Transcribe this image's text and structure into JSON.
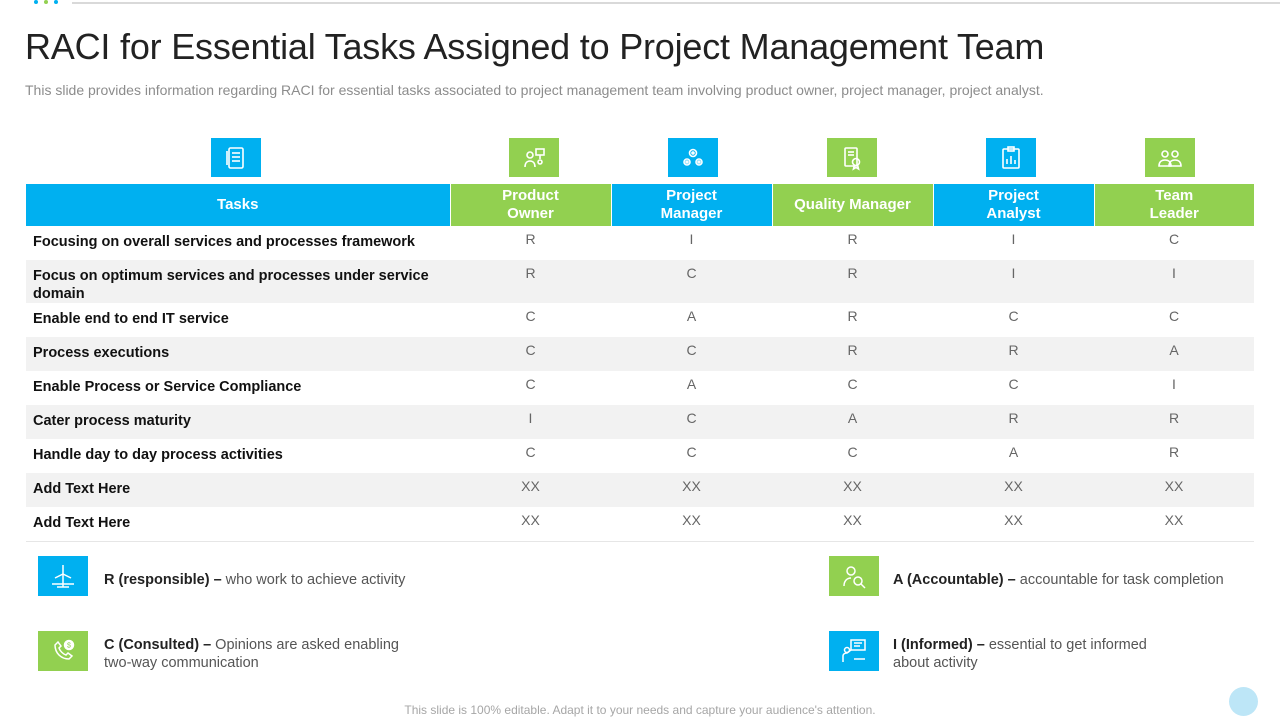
{
  "title": "RACI for Essential Tasks Assigned to Project Management Team",
  "subtitle": "This slide provides information regarding RACI for essential tasks associated to project management team involving product owner, project manager, project analyst.",
  "colors": {
    "blue": "#00b0f0",
    "green": "#92d050"
  },
  "table": {
    "headers": [
      "Tasks",
      "Product Owner",
      "Project Manager",
      "Quality Manager",
      "Project Analyst",
      "Team Leader"
    ],
    "role_icons": [
      "document-list-icon",
      "team-presentation-icon",
      "gears-icon",
      "certificate-icon",
      "clipboard-chart-icon",
      "group-icon"
    ],
    "rows": [
      {
        "task": "Focusing on overall services and processes framework",
        "values": [
          "R",
          "I",
          "R",
          "I",
          "C"
        ]
      },
      {
        "task": "Focus on optimum  services and processes under service domain",
        "values": [
          "R",
          "C",
          "R",
          "I",
          "I"
        ]
      },
      {
        "task": "Enable end to end IT service",
        "values": [
          "C",
          "A",
          "R",
          "C",
          "C"
        ]
      },
      {
        "task": "Process executions",
        "values": [
          "C",
          "C",
          "R",
          "R",
          "A"
        ]
      },
      {
        "task": "Enable Process or Service Compliance",
        "values": [
          "C",
          "A",
          "C",
          "C",
          "I"
        ]
      },
      {
        "task": "Cater process maturity",
        "values": [
          "I",
          "C",
          "A",
          "R",
          "R"
        ]
      },
      {
        "task": "Handle day to day process activities",
        "values": [
          "C",
          "C",
          "C",
          "A",
          "R"
        ]
      },
      {
        "task": "Add  Text Here",
        "values": [
          "XX",
          "XX",
          "XX",
          "XX",
          "XX"
        ]
      },
      {
        "task": "Add  Text Here",
        "values": [
          "XX",
          "XX",
          "XX",
          "XX",
          "XX"
        ]
      }
    ]
  },
  "legend": {
    "responsible": {
      "term": "R (responsible) –",
      "desc": " who work to achieve activity",
      "icon": "wind-turbine-icon"
    },
    "accountable": {
      "term": "A (Accountable) –",
      "desc": " accountable for task completion",
      "icon": "person-search-icon"
    },
    "consulted": {
      "term": "C (Consulted) –",
      "desc_line1": " Opinions are asked enabling",
      "desc_line2": "two-way communication",
      "icon": "phone-dollar-icon"
    },
    "informed": {
      "term": "I (Informed) –",
      "desc_line1": " essential to get informed",
      "desc_line2": "about activity",
      "icon": "meeting-board-icon"
    }
  },
  "footer": "This slide is 100% editable. Adapt it to your needs and capture your audience's attention."
}
